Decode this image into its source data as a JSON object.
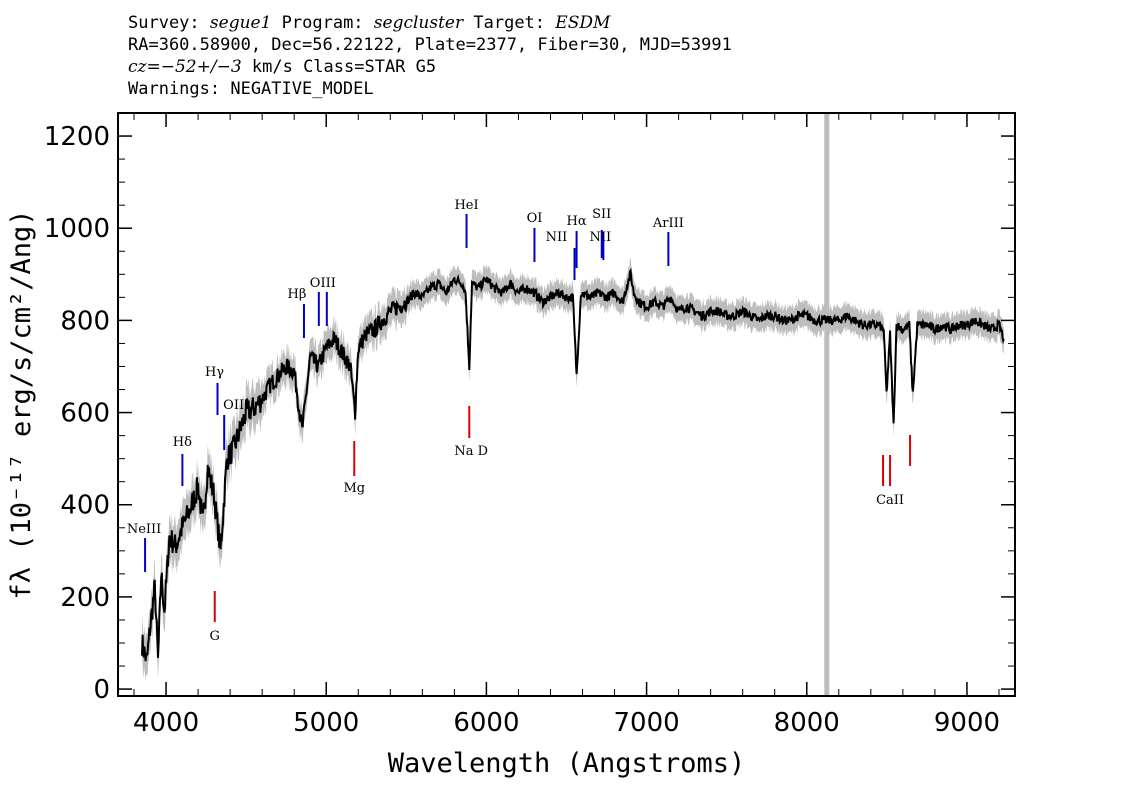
{
  "header": {
    "survey_label": "Survey:",
    "survey": "segue1",
    "program_label": "Program:",
    "program": "segcluster",
    "target_label": "Target:",
    "target": "ESDM",
    "line2": "RA=360.58900, Dec=56.22122, Plate=2377, Fiber=30, MJD=53991",
    "cz": "cz=−52+/−3",
    "line3_rest": "km/s Class=STAR G5",
    "warnings": "Warnings: NEGATIVE_MODEL"
  },
  "chart_data": {
    "type": "line",
    "xlabel": "Wavelength (Angstroms)",
    "ylabel": "fλ (10⁻¹⁷ erg/s/cm²/Ang)",
    "xlim": [
      3700,
      9300
    ],
    "ylim": [
      -15,
      1250
    ],
    "x_ticks": [
      4000,
      5000,
      6000,
      7000,
      8000,
      9000
    ],
    "y_ticks": [
      0,
      200,
      400,
      600,
      800,
      1000,
      1200
    ],
    "vertical_marker_x": 8125,
    "series": [
      {
        "name": "flux",
        "color": "#000000",
        "x": [
          3850,
          3880,
          3900,
          3930,
          3950,
          3970,
          3990,
          4020,
          4060,
          4100,
          4150,
          4200,
          4230,
          4260,
          4300,
          4340,
          4380,
          4420,
          4460,
          4500,
          4550,
          4600,
          4650,
          4700,
          4750,
          4800,
          4850,
          4900,
          4950,
          5000,
          5050,
          5100,
          5150,
          5180,
          5200,
          5250,
          5300,
          5350,
          5400,
          5450,
          5500,
          5550,
          5600,
          5650,
          5700,
          5750,
          5800,
          5850,
          5870,
          5893,
          5910,
          5950,
          6000,
          6050,
          6100,
          6150,
          6200,
          6250,
          6300,
          6350,
          6400,
          6450,
          6500,
          6540,
          6563,
          6590,
          6650,
          6700,
          6750,
          6800,
          6850,
          6880,
          6900,
          6920,
          6950,
          7000,
          7050,
          7100,
          7150,
          7200,
          7250,
          7300,
          7350,
          7400,
          7450,
          7500,
          7550,
          7600,
          7650,
          7700,
          7750,
          7800,
          7850,
          7900,
          7950,
          8000,
          8050,
          8100,
          8150,
          8200,
          8250,
          8300,
          8350,
          8400,
          8450,
          8480,
          8498,
          8520,
          8542,
          8560,
          8600,
          8640,
          8662,
          8690,
          8750,
          8800,
          8850,
          8900,
          8950,
          9000,
          9050,
          9100,
          9150,
          9200,
          9230
        ],
        "values": [
          100,
          60,
          130,
          220,
          60,
          250,
          170,
          330,
          310,
          350,
          390,
          440,
          360,
          480,
          420,
          300,
          500,
          520,
          560,
          600,
          610,
          630,
          660,
          680,
          700,
          690,
          560,
          720,
          700,
          740,
          760,
          730,
          700,
          600,
          740,
          770,
          780,
          800,
          820,
          830,
          840,
          860,
          850,
          870,
          880,
          860,
          890,
          880,
          860,
          700,
          880,
          870,
          890,
          870,
          860,
          880,
          860,
          870,
          860,
          840,
          850,
          860,
          850,
          850,
          680,
          860,
          850,
          860,
          850,
          860,
          840,
          880,
          900,
          860,
          840,
          830,
          840,
          830,
          850,
          820,
          830,
          820,
          810,
          820,
          820,
          810,
          810,
          820,
          810,
          800,
          810,
          810,
          800,
          800,
          810,
          810,
          800,
          800,
          800,
          800,
          810,
          800,
          790,
          790,
          790,
          780,
          640,
          770,
          570,
          790,
          780,
          790,
          640,
          790,
          790,
          780,
          790,
          780,
          790,
          790,
          800,
          790,
          780,
          790,
          760
        ]
      }
    ],
    "line_labels": [
      {
        "label": "NeIII",
        "wavelength": 3869,
        "type": "emission"
      },
      {
        "label": "Hδ",
        "wavelength": 4102,
        "type": "emission"
      },
      {
        "label": "Hγ",
        "wavelength": 4340,
        "type": "emission"
      },
      {
        "label": "OIII",
        "wavelength": 4363,
        "type": "emission"
      },
      {
        "label": "Hβ",
        "wavelength": 4861,
        "type": "emission"
      },
      {
        "label": "OIII",
        "wavelength": 4985,
        "type": "emission"
      },
      {
        "label": "HeI",
        "wavelength": 5876,
        "type": "emission"
      },
      {
        "label": "OI",
        "wavelength": 6300,
        "type": "emission"
      },
      {
        "label": "NII",
        "wavelength": 6550,
        "type": "emission"
      },
      {
        "label": "Hα",
        "wavelength": 6563,
        "type": "emission"
      },
      {
        "label": "SII",
        "wavelength": 6720,
        "type": "emission"
      },
      {
        "label": "NII",
        "wavelength": 6730,
        "type": "emission"
      },
      {
        "label": "ArIII",
        "wavelength": 7136,
        "type": "emission"
      },
      {
        "label": "G",
        "wavelength": 4304,
        "type": "absorption"
      },
      {
        "label": "Mg",
        "wavelength": 5175,
        "type": "absorption"
      },
      {
        "label": "Na D",
        "wavelength": 5893,
        "type": "absorption"
      },
      {
        "label": "CaII",
        "wavelength": 8520,
        "type": "absorption"
      }
    ]
  },
  "colors": {
    "flux": "#000000",
    "error_band": "#bdbdbd",
    "emission_marker": "#0000cc",
    "absorption_marker": "#dd0000",
    "vertical_marker": "#bdbdbd"
  }
}
